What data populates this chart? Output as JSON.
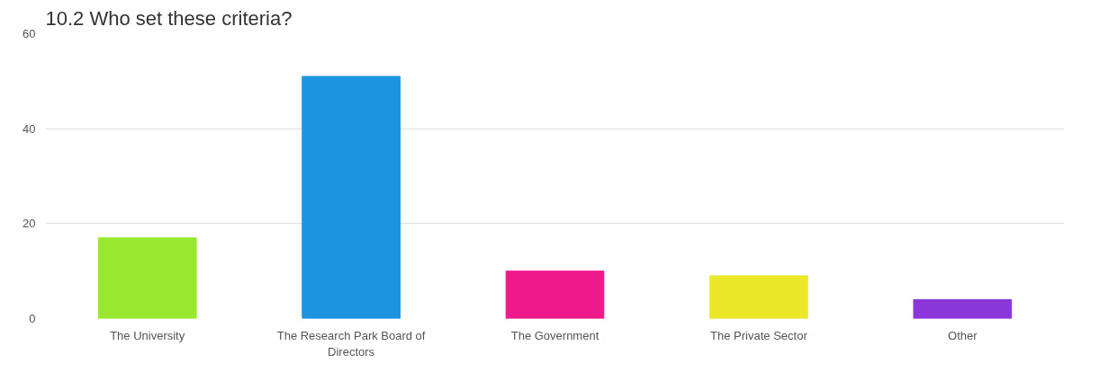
{
  "chart_data": {
    "type": "bar",
    "title": "10.2 Who set these criteria?",
    "categories": [
      "The University",
      "The Research Park Board of Directors",
      "The Government",
      "The Private Sector",
      "Other"
    ],
    "values": [
      17,
      51,
      10,
      9,
      4
    ],
    "colors": [
      "#97e82e",
      "#1c94e0",
      "#ee1a8c",
      "#ebe82a",
      "#8a36d8"
    ],
    "ylim": [
      0,
      60
    ],
    "yticks": [
      0,
      20,
      40,
      60
    ],
    "grid": "y"
  }
}
